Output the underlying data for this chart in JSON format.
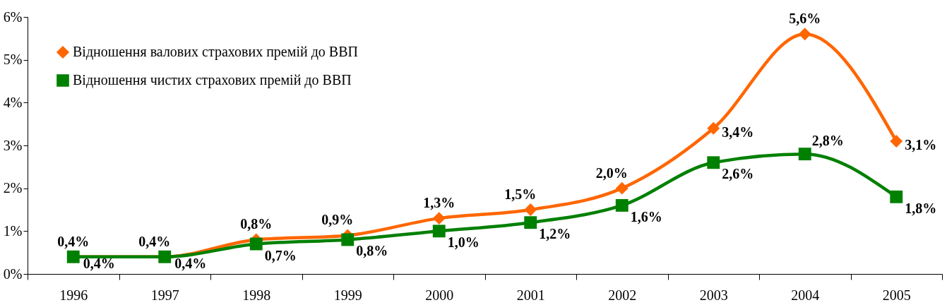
{
  "chart_data": {
    "type": "line",
    "categories": [
      "1996",
      "1997",
      "1998",
      "1999",
      "2000",
      "2001",
      "2002",
      "2003",
      "2004",
      "2005"
    ],
    "series": [
      {
        "name": "Відношення валових страхових премій до ВВП",
        "color": "#ff6600",
        "marker": "diamond",
        "values": [
          0.4,
          0.4,
          0.8,
          0.9,
          1.3,
          1.5,
          2.0,
          3.4,
          5.6,
          3.1
        ],
        "value_labels": [
          "0,4%",
          "0,4%",
          "0,8%",
          "0,9%",
          "1,3%",
          "1,5%",
          "2,0%",
          "3,4%",
          "5,6%",
          "3,1%"
        ]
      },
      {
        "name": "Відношення чистих страхових премій до ВВП",
        "color": "#008000",
        "marker": "square",
        "values": [
          0.4,
          0.4,
          0.7,
          0.8,
          1.0,
          1.2,
          1.6,
          2.6,
          2.8,
          1.8
        ],
        "value_labels": [
          "0,4%",
          "0,4%",
          "0,7%",
          "0,8%",
          "1,0%",
          "1,2%",
          "1,6%",
          "2,6%",
          "2,8%",
          "1,8%"
        ]
      }
    ],
    "ylim": [
      0,
      6
    ],
    "yticks": [
      {
        "value": 0,
        "label": "0%"
      },
      {
        "value": 1,
        "label": "1%"
      },
      {
        "value": 2,
        "label": "2%"
      },
      {
        "value": 3,
        "label": "3%"
      },
      {
        "value": 4,
        "label": "4%"
      },
      {
        "value": 5,
        "label": "5%"
      },
      {
        "value": 6,
        "label": "6%"
      }
    ],
    "legend": "top left",
    "line_style": "solid"
  }
}
